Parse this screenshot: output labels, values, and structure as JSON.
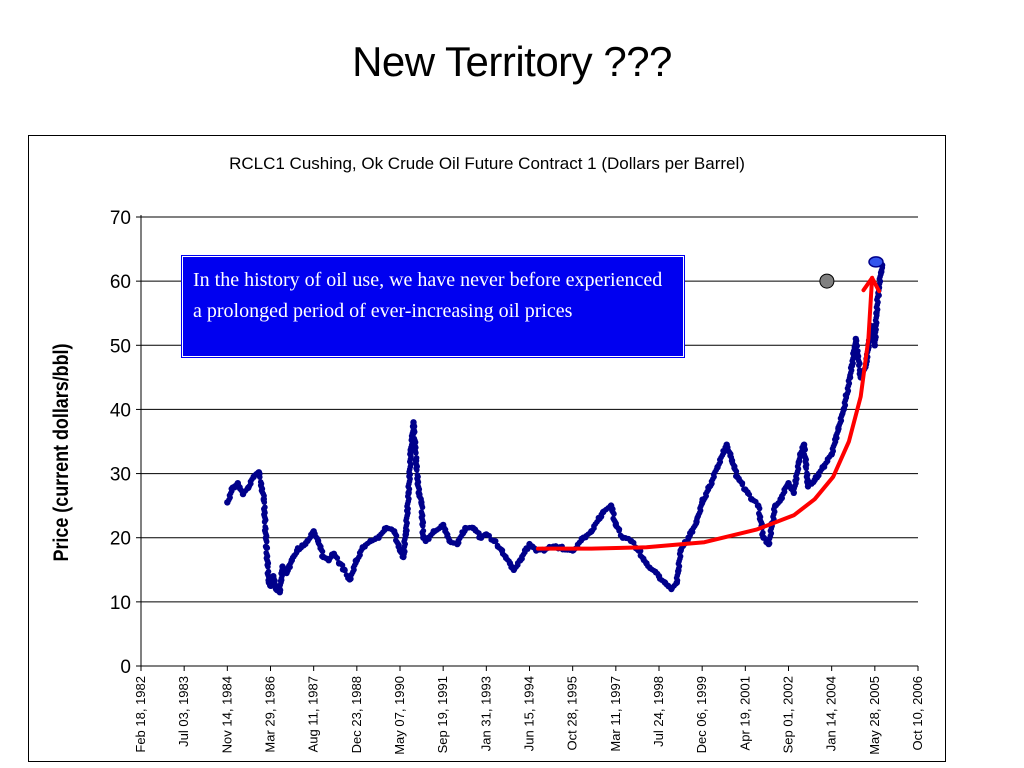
{
  "slide": {
    "title": "New Territory ???"
  },
  "annotation": {
    "text": "In the history of oil use, we have never before experienced a prolonged period of ever-increasing oil prices"
  },
  "colors": {
    "series": "#00008b",
    "callout_bg": "#0000f0",
    "trend_arrow": "#ff0000",
    "latest_point": "#3355ee",
    "marker_point": "#808080"
  },
  "chart_data": {
    "type": "scatter",
    "title": "RCLC1 Cushing, Ok Crude Oil Future Contract 1 (Dollars per Barrel)",
    "xlabel": "",
    "ylabel": "Price (current dollars/bbl)",
    "ylim": [
      0,
      70
    ],
    "yticks": [
      "0",
      "10",
      "20",
      "30",
      "40",
      "50",
      "60",
      "70"
    ],
    "xlim": [
      "1982-02-18",
      "2006-10-10"
    ],
    "xticks": [
      "Feb 18, 1982",
      "Jul 03, 1983",
      "Nov 14, 1984",
      "Mar 29, 1986",
      "Aug 11, 1987",
      "Dec 23, 1988",
      "May 07, 1990",
      "Sep 19, 1991",
      "Jan 31, 1993",
      "Jun 15, 1994",
      "Oct 28, 1995",
      "Mar 11, 1997",
      "Jul 24, 1998",
      "Dec 06, 1999",
      "Apr 19, 2001",
      "Sep 01, 2002",
      "Jan 14, 2004",
      "May 28, 2005",
      "Oct 10, 2006"
    ],
    "grid": true,
    "series": [
      {
        "x": [
          "1984-11-14",
          "1985-01-15",
          "1985-03-15",
          "1985-05-15",
          "1985-07-15",
          "1985-09-15",
          "1985-11-15",
          "1986-01-10",
          "1986-02-10",
          "1986-03-10",
          "1986-04-01",
          "1986-05-01",
          "1986-06-01",
          "1986-07-15",
          "1986-08-15",
          "1986-10-01",
          "1986-12-01",
          "1987-02-01",
          "1987-04-01",
          "1987-06-01",
          "1987-08-11",
          "1987-10-01",
          "1987-12-01",
          "1988-02-01",
          "1988-04-01",
          "1988-06-01",
          "1988-08-01",
          "1988-10-01",
          "1988-12-23",
          "1989-03-01",
          "1989-06-01",
          "1989-09-01",
          "1989-12-01",
          "1990-03-01",
          "1990-05-07",
          "1990-06-15",
          "1990-07-15",
          "1990-08-15",
          "1990-09-10",
          "1990-10-10",
          "1990-11-10",
          "1990-12-10",
          "1991-01-10",
          "1991-02-01",
          "1991-03-01",
          "1991-06-01",
          "1991-09-19",
          "1991-12-01",
          "1992-03-01",
          "1992-06-01",
          "1992-09-01",
          "1992-12-01",
          "1993-01-31",
          "1993-05-01",
          "1993-08-01",
          "1993-11-01",
          "1993-12-15",
          "1994-03-01",
          "1994-06-15",
          "1994-09-01",
          "1994-12-01",
          "1995-03-01",
          "1995-06-01",
          "1995-10-28",
          "1996-03-01",
          "1996-06-01",
          "1996-10-15",
          "1997-01-15",
          "1997-03-11",
          "1997-06-01",
          "1997-09-01",
          "1997-12-01",
          "1998-03-01",
          "1998-07-24",
          "1998-10-01",
          "1998-12-15",
          "1999-02-15",
          "1999-04-01",
          "1999-07-01",
          "1999-10-01",
          "1999-12-06",
          "2000-03-01",
          "2000-06-01",
          "2000-09-15",
          "2000-11-15",
          "2001-01-15",
          "2001-04-19",
          "2001-07-01",
          "2001-09-15",
          "2001-11-15",
          "2002-01-15",
          "2002-04-01",
          "2002-06-01",
          "2002-09-01",
          "2002-11-01",
          "2003-01-15",
          "2003-03-01",
          "2003-04-15",
          "2003-07-01",
          "2003-10-01",
          "2004-01-14",
          "2004-04-01",
          "2004-06-01",
          "2004-08-15",
          "2004-10-20",
          "2004-12-15",
          "2005-02-15",
          "2005-04-15",
          "2005-05-28",
          "2005-06-15",
          "2005-07-15",
          "2005-08-20"
        ],
        "y": [
          25.5,
          27.8,
          28.5,
          26.8,
          27.8,
          29.5,
          30.2,
          26.0,
          18.5,
          13.0,
          12.5,
          14.0,
          12.0,
          11.5,
          15.5,
          14.5,
          16.5,
          18.0,
          18.8,
          19.5,
          21.0,
          19.5,
          17.0,
          16.5,
          17.5,
          16.0,
          15.0,
          13.5,
          16.5,
          18.5,
          19.5,
          20.0,
          21.5,
          21.0,
          18.0,
          17.0,
          21.0,
          27.0,
          33.5,
          38.0,
          32.0,
          27.0,
          25.5,
          20.0,
          19.5,
          21.0,
          22.0,
          19.5,
          19.0,
          21.5,
          21.5,
          20.0,
          20.5,
          19.5,
          18.0,
          16.0,
          15.0,
          16.5,
          19.0,
          18.0,
          18.0,
          18.5,
          18.5,
          18.0,
          20.0,
          21.0,
          24.0,
          25.0,
          22.0,
          20.0,
          19.5,
          18.0,
          16.0,
          14.0,
          13.0,
          12.0,
          13.0,
          18.0,
          20.0,
          22.5,
          25.5,
          28.0,
          31.0,
          34.5,
          32.0,
          29.5,
          27.5,
          26.0,
          25.0,
          20.0,
          19.0,
          25.0,
          26.0,
          28.5,
          27.0,
          33.0,
          34.5,
          28.0,
          29.0,
          31.0,
          33.0,
          37.0,
          40.0,
          45.0,
          51.0,
          45.0,
          47.0,
          53.0,
          50.0,
          55.0,
          59.0,
          62.5
        ]
      }
    ],
    "highlight_points": [
      {
        "x": "2005-06-10",
        "y": 63.0,
        "color": "#3355ee"
      },
      {
        "x": "2003-11-20",
        "y": 60.0,
        "color": "#808080"
      }
    ],
    "trend_arrow": {
      "x": [
        "1994-09-20",
        "1996-06-01",
        "1998-03-01",
        "2000-01-01",
        "2001-09-01",
        "2002-11-01",
        "2003-07-01",
        "2004-02-01",
        "2004-08-01",
        "2004-12-15",
        "2005-03-15",
        "2005-04-26"
      ],
      "y": [
        18.3,
        18.3,
        18.5,
        19.3,
        21.3,
        23.5,
        26.0,
        29.5,
        35.0,
        42.0,
        51.0,
        60.5
      ]
    }
  }
}
